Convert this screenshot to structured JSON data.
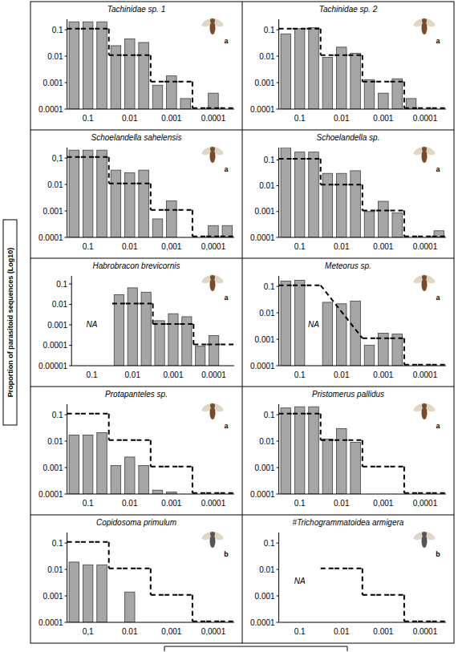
{
  "ylabel": "Proportion of parasitoid sequences (Log10)",
  "chart_data": [
    {
      "type": "bar",
      "title": "Tachinidae sp. 1",
      "log": "y",
      "photo_label": "a",
      "categories": [
        null,
        "0.1",
        null,
        null,
        "0.01",
        null,
        null,
        "0.001",
        null,
        null,
        "0.0001",
        null
      ],
      "series": [
        {
          "type": "bar",
          "color": "#a6a6a6",
          "values": [
            0.2,
            0.2,
            0.2,
            0.025,
            0.045,
            0.033,
            0.0008,
            0.0018,
            0.00025,
            null,
            0.0004,
            null
          ]
        },
        {
          "type": "line",
          "line_style": "dashed",
          "color": "#000000",
          "values": [
            0.11,
            0.11,
            0.11,
            0.011,
            0.011,
            0.011,
            0.0011,
            0.0011,
            0.0011,
            0.00011,
            0.00011,
            0.00011
          ]
        }
      ],
      "ylim": [
        0.0001,
        0.25
      ],
      "yticks": [
        0.1,
        0.01,
        0.001,
        0.0001
      ]
    },
    {
      "type": "bar",
      "title": "Tachinidae sp. 2",
      "log": "y",
      "photo_label": "a",
      "categories": [
        null,
        "0.1",
        null,
        null,
        "0.01",
        null,
        null,
        "0.001",
        null,
        null,
        "0.0001",
        null
      ],
      "series": [
        {
          "type": "bar",
          "color": "#a6a6a6",
          "values": [
            0.07,
            0.11,
            0.12,
            0.009,
            0.022,
            0.013,
            0.0013,
            0.0004,
            0.0014,
            0.00025,
            null,
            null
          ]
        },
        {
          "type": "line",
          "line_style": "dashed",
          "color": "#000000",
          "values": [
            0.11,
            0.11,
            0.11,
            0.011,
            0.011,
            0.011,
            0.0011,
            0.0011,
            0.0011,
            0.00011,
            0.00011,
            0.00011
          ]
        }
      ],
      "ylim": [
        0.0001,
        0.25
      ],
      "yticks": [
        0.1,
        0.01,
        0.001,
        0.0001
      ]
    },
    {
      "type": "bar",
      "title": "Schoelandella sahelensis",
      "log": "y",
      "photo_label": "a",
      "categories": [
        null,
        "0.1",
        null,
        null,
        "0.01",
        null,
        null,
        "0,001",
        null,
        null,
        "0,0001",
        null
      ],
      "series": [
        {
          "type": "bar",
          "color": "#a6a6a6",
          "values": [
            0.2,
            0.2,
            0.2,
            0.035,
            0.028,
            0.035,
            0.0005,
            0.0024,
            null,
            null,
            0.00028,
            0.00028
          ]
        },
        {
          "type": "line",
          "line_style": "dashed",
          "color": "#000000",
          "values": [
            0.11,
            0.11,
            0.11,
            0.011,
            0.011,
            0.011,
            0.0011,
            0.0011,
            0.0011,
            0.00011,
            0.00011,
            0.00011
          ]
        }
      ],
      "ylim": [
        0.0001,
        0.25
      ],
      "yticks": [
        {
          "value": 0.1,
          "label": "0,1"
        },
        0.01,
        0.001,
        0.0001
      ]
    },
    {
      "type": "bar",
      "title": "Schoelandella sp.",
      "log": "y",
      "photo_label": "a",
      "categories": [
        null,
        "0.1",
        null,
        null,
        "0.01",
        null,
        null,
        "0.001",
        null,
        null,
        "0.0001",
        null
      ],
      "series": [
        {
          "type": "bar",
          "color": "#a6a6a6",
          "values": [
            0.3,
            0.2,
            0.2,
            0.03,
            0.03,
            0.038,
            0.001,
            0.0025,
            0.0009,
            null,
            null,
            0.00018
          ]
        },
        {
          "type": "line",
          "line_style": "dashed",
          "color": "#000000",
          "values": [
            0.11,
            0.11,
            0.11,
            0.011,
            0.011,
            0.011,
            0.0011,
            0.0011,
            0.0011,
            0.00011,
            0.00011,
            0.00011
          ]
        }
      ],
      "ylim": [
        0.0001,
        0.3
      ],
      "yticks": [
        0.1,
        0.01,
        0.001,
        0.0001
      ]
    },
    {
      "type": "bar",
      "title": "Habrobracon brevicornis",
      "log": "y",
      "photo_label": "a",
      "annotation": "NA",
      "categories": [
        null,
        "0.1",
        null,
        null,
        "0.01",
        null,
        null,
        "0.001",
        null,
        null,
        "0.0001",
        null
      ],
      "series": [
        {
          "type": "bar",
          "color": "#a6a6a6",
          "values": [
            null,
            null,
            null,
            0.03,
            0.065,
            0.04,
            0.0016,
            0.0035,
            0.0025,
            9e-05,
            0.0003,
            null
          ]
        },
        {
          "type": "line",
          "line_style": "dashed",
          "color": "#000000",
          "values": [
            null,
            null,
            null,
            0.011,
            0.011,
            0.011,
            0.0011,
            0.0011,
            0.0011,
            0.00011,
            0.00011,
            0.00011
          ]
        }
      ],
      "ylim": [
        1e-05,
        0.25
      ],
      "yticks": [
        0.1,
        0.01,
        0.001,
        0.0001,
        1e-05
      ]
    },
    {
      "type": "bar",
      "title": "Meteorus sp.",
      "log": "y",
      "photo_label": "a",
      "annotation": "NA",
      "categories": [
        null,
        "0.1",
        null,
        null,
        "0.01",
        null,
        null,
        "0.001",
        null,
        null,
        "0.0001",
        null
      ],
      "series": [
        {
          "type": "bar",
          "color": "#a6a6a6",
          "values": [
            0.16,
            0.17,
            null,
            0.025,
            0.022,
            0.028,
            0.0006,
            0.0017,
            0.0016,
            null,
            null,
            null
          ]
        },
        {
          "type": "line",
          "line_style": "dashed",
          "color": "#000000",
          "values": [
            0.11,
            0.11,
            0.11,
            null,
            null,
            null,
            0.0011,
            0.0011,
            0.0011,
            0.00011,
            0.00011,
            0.00011
          ]
        }
      ],
      "ylim": [
        0.0001,
        0.25
      ],
      "yticks": [
        0.1,
        0.01,
        0.001,
        0.0001
      ]
    },
    {
      "type": "bar",
      "title": "Protapanteles sp.",
      "log": "y",
      "photo_label": "a",
      "categories": [
        null,
        "0.1",
        null,
        null,
        "0.01",
        null,
        null,
        "0.001",
        null,
        null,
        "0.0001",
        null
      ],
      "series": [
        {
          "type": "bar",
          "color": "#a6a6a6",
          "values": [
            0.017,
            0.017,
            0.021,
            0.0012,
            0.0025,
            0.0012,
            0.00014,
            0.00012,
            null,
            null,
            null,
            null
          ]
        },
        {
          "type": "line",
          "line_style": "dashed",
          "color": "#000000",
          "values": [
            0.11,
            0.11,
            0.11,
            0.011,
            0.011,
            0.011,
            0.0011,
            0.0011,
            0.0011,
            0.00011,
            0.00011,
            0.00011
          ]
        }
      ],
      "ylim": [
        0.0001,
        0.25
      ],
      "yticks": [
        0.1,
        0.01,
        0.001,
        0.0001
      ]
    },
    {
      "type": "bar",
      "title": "Pristomerus pallidus",
      "log": "y",
      "photo_label": "a",
      "categories": [
        null,
        "0.1",
        null,
        null,
        "0.01",
        null,
        null,
        "0,001",
        null,
        null,
        "0,0001",
        null
      ],
      "series": [
        {
          "type": "bar",
          "color": "#a6a6a6",
          "values": [
            0.18,
            0.2,
            0.2,
            0.012,
            0.03,
            0.009,
            null,
            null,
            null,
            null,
            null,
            null
          ]
        },
        {
          "type": "line",
          "line_style": "dashed",
          "color": "#000000",
          "values": [
            0.11,
            0.11,
            0.11,
            0.011,
            0.011,
            0.011,
            0.0011,
            0.0011,
            0.0011,
            0.00011,
            0.00011,
            0.00011
          ]
        }
      ],
      "ylim": [
        0.0001,
        0.25
      ],
      "yticks": [
        0.1,
        0.01,
        0.001,
        0.0001
      ]
    },
    {
      "type": "bar",
      "title": "Copidosoma primulum",
      "log": "y",
      "photo_label": "b",
      "categories": [
        null,
        "0,1",
        null,
        null,
        "0.01",
        null,
        null,
        "0,001",
        null,
        null,
        "0,0001",
        null
      ],
      "series": [
        {
          "type": "bar",
          "color": "#a6a6a6",
          "values": [
            0.019,
            0.015,
            0.015,
            null,
            0.0014,
            null,
            null,
            null,
            null,
            null,
            null,
            null
          ]
        },
        {
          "type": "line",
          "line_style": "dashed",
          "color": "#000000",
          "values": [
            0.11,
            0.11,
            0.11,
            0.011,
            0.011,
            0.011,
            0.0011,
            0.0011,
            0.0011,
            0.00011,
            0.00011,
            0.00011
          ]
        }
      ],
      "ylim": [
        0.0001,
        0.25
      ],
      "yticks": [
        0.1,
        0.01,
        0.001,
        0.0001
      ]
    },
    {
      "type": "bar",
      "title": "#Trichogrammatoidea armigera",
      "log": "y",
      "photo_label": "b",
      "annotation": "NA",
      "categories": [
        null,
        "0.1",
        null,
        null,
        "0.01",
        null,
        null,
        "0.001",
        null,
        null,
        "0.0001",
        null
      ],
      "series": [
        {
          "type": "bar",
          "color": "#a6a6a6",
          "values": [
            null,
            null,
            null,
            null,
            null,
            null,
            null,
            null,
            null,
            null,
            null,
            null
          ]
        },
        {
          "type": "line",
          "line_style": "dashed",
          "color": "#000000",
          "values": [
            null,
            null,
            null,
            0.011,
            0.011,
            0.011,
            0.0011,
            0.0011,
            0.0011,
            0.00011,
            0.00011,
            0.00011
          ]
        }
      ],
      "ylim": [
        0.0001,
        0.25
      ],
      "yticks": [
        0.1,
        0.01,
        0.001,
        0.0001
      ]
    }
  ]
}
